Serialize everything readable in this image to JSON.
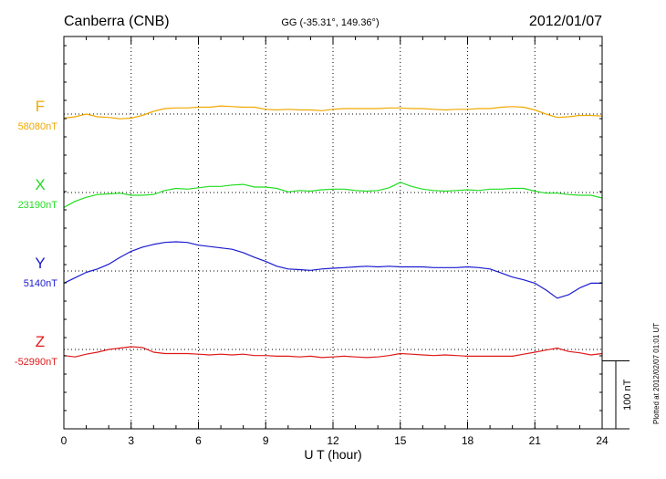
{
  "header": {
    "station": "Canberra (CNB)",
    "coords": "GG (-35.31°, 149.36°)",
    "date": "2012/01/07"
  },
  "footer": {
    "plotted": "Plotted at 2012/02/07 01:01 UT"
  },
  "chart_data": {
    "type": "line",
    "title": "Canberra (CNB)",
    "xlabel": "U T (hour)",
    "ylabel": "",
    "xlim": [
      0,
      24
    ],
    "xticks": [
      "0",
      "3",
      "6",
      "9",
      "12",
      "15",
      "18",
      "21",
      "24"
    ],
    "grid": true,
    "scale_bar": {
      "label": "100 nT",
      "value": 100
    },
    "series": [
      {
        "name": "F",
        "baseline_label": "58080nT",
        "color": "#f0a800",
        "x": [
          0,
          0.5,
          1,
          1.5,
          2,
          2.5,
          3,
          3.5,
          4,
          4.5,
          5,
          5.5,
          6,
          6.5,
          7,
          7.5,
          8,
          8.5,
          9,
          9.5,
          10,
          10.5,
          11,
          11.5,
          12,
          12.5,
          13,
          13.5,
          14,
          14.5,
          15,
          15.5,
          16,
          16.5,
          17,
          17.5,
          18,
          18.5,
          19,
          19.5,
          20,
          20.5,
          21,
          21.5,
          22,
          22.5,
          23,
          23.5,
          24
        ],
        "values": [
          -6,
          -4,
          0,
          -4,
          -5,
          -7,
          -6,
          -2,
          4,
          8,
          9,
          9,
          10,
          10,
          12,
          11,
          10,
          10,
          7,
          6,
          7,
          6,
          6,
          5,
          7,
          8,
          8,
          8,
          8,
          9,
          9,
          8,
          8,
          7,
          6,
          7,
          7,
          8,
          8,
          10,
          11,
          10,
          6,
          0,
          -5,
          -4,
          -2,
          -2,
          -3
        ]
      },
      {
        "name": "X",
        "baseline_label": "23190nT",
        "color": "#22dd22",
        "x": [
          0,
          0.5,
          1,
          1.5,
          2,
          2.5,
          3,
          3.5,
          4,
          4.5,
          5,
          5.5,
          6,
          6.5,
          7,
          7.5,
          8,
          8.5,
          9,
          9.5,
          10,
          10.5,
          11,
          11.5,
          12,
          12.5,
          13,
          13.5,
          14,
          14.5,
          15,
          15.5,
          16,
          16.5,
          17,
          17.5,
          18,
          18.5,
          19,
          19.5,
          20,
          20.5,
          21,
          21.5,
          22,
          22.5,
          23,
          23.5,
          24
        ],
        "values": [
          -22,
          -13,
          -7,
          -3,
          -2,
          -1,
          -4,
          -4,
          -3,
          3,
          6,
          5,
          7,
          9,
          9,
          11,
          12,
          8,
          8,
          6,
          1,
          3,
          2,
          4,
          5,
          5,
          3,
          2,
          3,
          7,
          15,
          9,
          5,
          3,
          2,
          3,
          4,
          3,
          5,
          5,
          6,
          6,
          2,
          -1,
          -1,
          -3,
          -4,
          -4,
          -8
        ]
      },
      {
        "name": "Y",
        "baseline_label": "5140nT",
        "color": "#1a1ad0",
        "x": [
          0,
          0.5,
          1,
          1.5,
          2,
          2.5,
          3,
          3.5,
          4,
          4.5,
          5,
          5.5,
          6,
          6.5,
          7,
          7.5,
          8,
          8.5,
          9,
          9.5,
          10,
          10.5,
          11,
          11.5,
          12,
          12.5,
          13,
          13.5,
          14,
          14.5,
          15,
          15.5,
          16,
          16.5,
          17,
          17.5,
          18,
          18.5,
          19,
          19.5,
          20,
          20.5,
          21,
          21.5,
          22,
          22.5,
          23,
          23.5,
          24
        ],
        "values": [
          -18,
          -10,
          -2,
          3,
          10,
          20,
          29,
          35,
          39,
          42,
          43,
          42,
          38,
          36,
          34,
          32,
          27,
          20,
          14,
          7,
          3,
          2,
          1,
          3,
          4,
          5,
          6,
          7,
          6,
          7,
          6,
          6,
          6,
          5,
          5,
          5,
          6,
          5,
          3,
          -3,
          -9,
          -13,
          -18,
          -28,
          -40,
          -35,
          -25,
          -18,
          -18
        ]
      },
      {
        "name": "Z",
        "baseline_label": "-52990nT",
        "color": "#e01818",
        "x": [
          0,
          0.5,
          1,
          1.5,
          2,
          2.5,
          3,
          3.5,
          4,
          4.5,
          5,
          5.5,
          6,
          6.5,
          7,
          7.5,
          8,
          8.5,
          9,
          9.5,
          10,
          10.5,
          11,
          11.5,
          12,
          12.5,
          13,
          13.5,
          14,
          14.5,
          15,
          15.5,
          16,
          16.5,
          17,
          17.5,
          18,
          18.5,
          19,
          19.5,
          20,
          20.5,
          21,
          21.5,
          22,
          22.5,
          23,
          23.5,
          24
        ],
        "values": [
          -9,
          -11,
          -7,
          -4,
          0,
          2,
          4,
          3,
          -4,
          -6,
          -6,
          -6,
          -7,
          -8,
          -7,
          -8,
          -7,
          -9,
          -9,
          -10,
          -10,
          -11,
          -10,
          -12,
          -11,
          -10,
          -11,
          -12,
          -11,
          -9,
          -6,
          -7,
          -8,
          -9,
          -8,
          -9,
          -10,
          -10,
          -10,
          -10,
          -10,
          -7,
          -4,
          -1,
          2,
          -3,
          -5,
          -8,
          -6
        ]
      }
    ]
  }
}
